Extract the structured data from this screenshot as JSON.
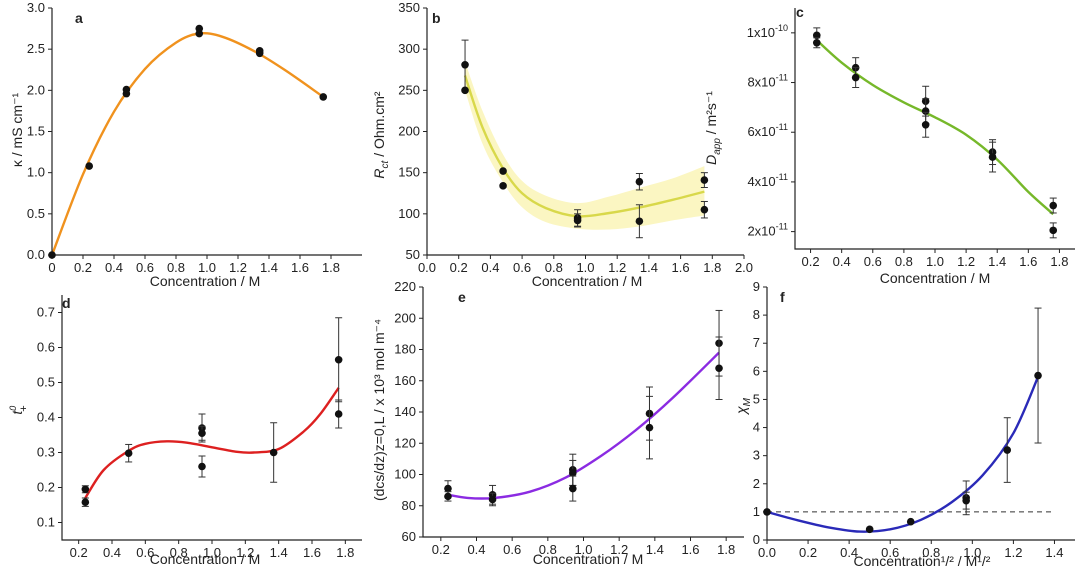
{
  "chart_data": [
    {
      "type": "scatter",
      "panel_label": "a",
      "xlabel": "Concentration / M",
      "ylabel": "κ / mS cm⁻¹",
      "xlim": [
        0,
        2.0
      ],
      "ylim": [
        0,
        3.0
      ],
      "x_ticks": [
        0,
        0.2,
        0.4,
        0.6,
        0.8,
        1.0,
        1.2,
        1.4,
        1.6,
        1.8
      ],
      "x_tick_labels": [
        "0",
        "0.2",
        "0.4",
        "0.6",
        "0.8",
        "1.0",
        "1.2",
        "1.4",
        "1.6",
        "1.8"
      ],
      "y_ticks": [
        0,
        0.5,
        1.0,
        1.5,
        2.0,
        2.5,
        3.0
      ],
      "y_tick_labels": [
        "0.0",
        "0.5",
        "1.0",
        "1.5",
        "2.0",
        "2.5",
        "3.0"
      ],
      "fit_color": "#f0921e",
      "points": [
        {
          "x": 0,
          "y": 0.0
        },
        {
          "x": 0.24,
          "y": 1.08
        },
        {
          "x": 0.48,
          "y": 1.96
        },
        {
          "x": 0.48,
          "y": 2.01
        },
        {
          "x": 0.95,
          "y": 2.69
        },
        {
          "x": 0.95,
          "y": 2.75
        },
        {
          "x": 1.34,
          "y": 2.45
        },
        {
          "x": 1.34,
          "y": 2.48
        },
        {
          "x": 1.75,
          "y": 1.92
        }
      ],
      "fit": {
        "x": [
          0,
          0.2,
          0.4,
          0.6,
          0.8,
          0.95,
          1.1,
          1.3,
          1.5,
          1.75
        ],
        "y": [
          0,
          0.98,
          1.74,
          2.26,
          2.58,
          2.69,
          2.65,
          2.48,
          2.25,
          1.92
        ]
      }
    },
    {
      "type": "scatter",
      "panel_label": "b",
      "xlabel": "Concentration / M",
      "ylabel": "Rct / Ohm.cm²",
      "ylabel_main": "R",
      "ylabel_sub": "ct",
      "ylabel_rest": " / Ohm.cm²",
      "xlim": [
        0,
        2.0
      ],
      "ylim": [
        50,
        350
      ],
      "x_ticks": [
        0,
        0.2,
        0.4,
        0.6,
        0.8,
        1.0,
        1.2,
        1.4,
        1.6,
        1.8,
        2.0
      ],
      "x_tick_labels": [
        "0.0",
        "0.2",
        "0.4",
        "0.6",
        "0.8",
        "1.0",
        "1.2",
        "1.4",
        "1.6",
        "1.8",
        "2.0"
      ],
      "y_ticks": [
        50,
        100,
        150,
        200,
        250,
        300,
        350
      ],
      "y_tick_labels": [
        "50",
        "100",
        "150",
        "200",
        "250",
        "300",
        "350"
      ],
      "fit_color": "#d8d84a",
      "band_color": "#fbf6c2",
      "points": [
        {
          "x": 0.24,
          "y": 281,
          "err": 30
        },
        {
          "x": 0.24,
          "y": 250,
          "err": 0
        },
        {
          "x": 0.48,
          "y": 152,
          "err": 0
        },
        {
          "x": 0.48,
          "y": 134,
          "err": 0
        },
        {
          "x": 0.95,
          "y": 95,
          "err": 10
        },
        {
          "x": 0.95,
          "y": 92,
          "err": 8
        },
        {
          "x": 1.34,
          "y": 139,
          "err": 10
        },
        {
          "x": 1.34,
          "y": 91,
          "err": 20
        },
        {
          "x": 1.75,
          "y": 141,
          "err": 9
        },
        {
          "x": 1.75,
          "y": 105,
          "err": 10
        }
      ],
      "fit": {
        "x": [
          0.24,
          0.35,
          0.48,
          0.6,
          0.75,
          0.95,
          1.15,
          1.35,
          1.55,
          1.75
        ],
        "y": [
          268,
          205,
          155,
          125,
          107,
          97,
          101,
          108,
          117,
          127
        ]
      },
      "band_upper": [
        285,
        225,
        172,
        140,
        122,
        113,
        121,
        132,
        143,
        158
      ],
      "band_lower": [
        250,
        185,
        138,
        108,
        90,
        82,
        81,
        85,
        92,
        98
      ]
    },
    {
      "type": "scatter",
      "panel_label": "c",
      "xlabel": "Concentration / M",
      "ylabel": "Dapp / m²s⁻¹",
      "ylabel_main": "D",
      "ylabel_sub": "app",
      "ylabel_rest": " / m²s⁻¹",
      "xlim": [
        0.1,
        1.9
      ],
      "ylim": [
        1.3e-11,
        1.1e-10
      ],
      "x_ticks": [
        0.2,
        0.4,
        0.6,
        0.8,
        1.0,
        1.2,
        1.4,
        1.6,
        1.8
      ],
      "x_tick_labels": [
        "0.2",
        "0.4",
        "0.6",
        "0.8",
        "1.0",
        "1.2",
        "1.4",
        "1.6",
        "1.8"
      ],
      "y_ticks": [
        2e-11,
        4e-11,
        6e-11,
        8e-11,
        1e-10
      ],
      "y_tick_base": [
        "2x10",
        "4x10",
        "6x10",
        "8x10",
        "1x10"
      ],
      "y_tick_exp": [
        "-11",
        "-11",
        "-11",
        "-11",
        "-10"
      ],
      "fit_color": "#76b82a",
      "points": [
        {
          "x": 0.24,
          "y": 9.9e-11,
          "err": 3e-12
        },
        {
          "x": 0.24,
          "y": 9.6e-11,
          "err": 2e-12
        },
        {
          "x": 0.49,
          "y": 8.6e-11,
          "err": 4e-12
        },
        {
          "x": 0.49,
          "y": 8.2e-11,
          "err": 4e-12
        },
        {
          "x": 0.94,
          "y": 7.25e-11,
          "err": 6e-12
        },
        {
          "x": 0.94,
          "y": 6.85e-11,
          "err": 5e-12
        },
        {
          "x": 0.94,
          "y": 6.3e-11,
          "err": 5e-12
        },
        {
          "x": 1.37,
          "y": 5.2e-11,
          "err": 5e-12
        },
        {
          "x": 1.37,
          "y": 5e-11,
          "err": 6e-12
        },
        {
          "x": 1.76,
          "y": 3.05e-11,
          "err": 3e-12
        },
        {
          "x": 1.76,
          "y": 2.05e-11,
          "err": 3e-12
        }
      ],
      "fit": {
        "x": [
          0.24,
          0.4,
          0.6,
          0.8,
          1.0,
          1.2,
          1.4,
          1.6,
          1.76
        ],
        "y": [
          9.7e-11,
          8.8e-11,
          7.9e-11,
          7.2e-11,
          6.6e-11,
          5.9e-11,
          4.9e-11,
          3.6e-11,
          2.7e-11
        ]
      }
    },
    {
      "type": "scatter",
      "panel_label": "d",
      "xlabel": "Concentration / M",
      "ylabel": "t⁰₊",
      "ylabel_main": "t",
      "ylabel_sup": "0",
      "ylabel_sub": "+",
      "xlim": [
        0.1,
        1.9
      ],
      "ylim": [
        0.05,
        0.75
      ],
      "x_ticks": [
        0.2,
        0.4,
        0.6,
        0.8,
        1.0,
        1.2,
        1.4,
        1.6,
        1.8
      ],
      "x_tick_labels": [
        "0.2",
        "0.4",
        "0.6",
        "0.8",
        "1.0",
        "1.2",
        "1.4",
        "1.6",
        "1.8"
      ],
      "y_ticks": [
        0.1,
        0.2,
        0.3,
        0.4,
        0.5,
        0.6,
        0.7
      ],
      "y_tick_labels": [
        "0.1",
        "0.2",
        "0.3",
        "0.4",
        "0.5",
        "0.6",
        "0.7"
      ],
      "fit_color": "#dd2020",
      "points": [
        {
          "x": 0.24,
          "y": 0.195,
          "err": 0.01
        },
        {
          "x": 0.24,
          "y": 0.158,
          "err": 0.012
        },
        {
          "x": 0.5,
          "y": 0.298,
          "err": 0.025
        },
        {
          "x": 0.94,
          "y": 0.37,
          "err": 0.04
        },
        {
          "x": 0.94,
          "y": 0.355,
          "err": 0.02
        },
        {
          "x": 0.94,
          "y": 0.26,
          "err": 0.03
        },
        {
          "x": 1.37,
          "y": 0.3,
          "err": 0.085
        },
        {
          "x": 1.76,
          "y": 0.565,
          "err": 0.12
        },
        {
          "x": 1.76,
          "y": 0.41,
          "err": 0.04
        }
      ],
      "fit": {
        "x": [
          0.24,
          0.35,
          0.5,
          0.6,
          0.73,
          0.85,
          1.0,
          1.15,
          1.25,
          1.4,
          1.55,
          1.65,
          1.76
        ],
        "y": [
          0.17,
          0.25,
          0.305,
          0.325,
          0.332,
          0.328,
          0.315,
          0.302,
          0.3,
          0.31,
          0.36,
          0.41,
          0.485
        ]
      }
    },
    {
      "type": "scatter",
      "panel_label": "e",
      "xlabel": "Concentration / M",
      "ylabel": "(dcs/dz)z=0,L / x 10³ mol m⁻⁴",
      "xlim": [
        0.1,
        1.9
      ],
      "ylim": [
        60,
        220
      ],
      "x_ticks": [
        0.2,
        0.4,
        0.6,
        0.8,
        1.0,
        1.2,
        1.4,
        1.6,
        1.8
      ],
      "x_tick_labels": [
        "0.2",
        "0.4",
        "0.6",
        "0.8",
        "1.0",
        "1.2",
        "1.4",
        "1.6",
        "1.8"
      ],
      "y_ticks": [
        60,
        80,
        100,
        120,
        140,
        160,
        180,
        200,
        220
      ],
      "y_tick_labels": [
        "60",
        "80",
        "100",
        "120",
        "140",
        "160",
        "180",
        "200",
        "220"
      ],
      "fit_color": "#8b2be2",
      "points": [
        {
          "x": 0.24,
          "y": 91,
          "err": 5
        },
        {
          "x": 0.24,
          "y": 86,
          "err": 3
        },
        {
          "x": 0.49,
          "y": 87,
          "err": 6
        },
        {
          "x": 0.49,
          "y": 84,
          "err": 4
        },
        {
          "x": 0.94,
          "y": 103,
          "err": 10
        },
        {
          "x": 0.94,
          "y": 101,
          "err": 8
        },
        {
          "x": 0.94,
          "y": 91,
          "err": 8
        },
        {
          "x": 1.37,
          "y": 139,
          "err": 17
        },
        {
          "x": 1.37,
          "y": 130,
          "err": 20
        },
        {
          "x": 1.76,
          "y": 184,
          "err": 21
        },
        {
          "x": 1.76,
          "y": 168,
          "err": 20
        }
      ],
      "fit": {
        "x": [
          0.24,
          0.35,
          0.5,
          0.7,
          0.9,
          1.1,
          1.3,
          1.5,
          1.76
        ],
        "y": [
          87,
          85,
          85,
          89,
          98,
          112,
          129,
          149,
          178
        ]
      }
    },
    {
      "type": "scatter",
      "panel_label": "f",
      "xlabel": "Concentration¹/² / M¹/²",
      "ylabel": "χM",
      "ylabel_main": "χ",
      "ylabel_sub": "M",
      "xlim": [
        0,
        1.5
      ],
      "ylim": [
        0,
        9
      ],
      "x_ticks": [
        0,
        0.2,
        0.4,
        0.6,
        0.8,
        1.0,
        1.2,
        1.4
      ],
      "x_tick_labels": [
        "0.0",
        "0.2",
        "0.4",
        "0.6",
        "0.8",
        "1.0",
        "1.2",
        "1.4"
      ],
      "y_ticks": [
        0,
        1,
        2,
        3,
        4,
        5,
        6,
        7,
        8,
        9
      ],
      "y_tick_labels": [
        "0",
        "1",
        "2",
        "3",
        "4",
        "5",
        "6",
        "7",
        "8",
        "9"
      ],
      "fit_color": "#2a2ab8",
      "reference_line_y": 1,
      "points": [
        {
          "x": 0.0,
          "y": 1.0,
          "err": 0
        },
        {
          "x": 0.5,
          "y": 0.38,
          "err": 0
        },
        {
          "x": 0.7,
          "y": 0.65,
          "err": 0
        },
        {
          "x": 0.97,
          "y": 1.5,
          "err": 0.6
        },
        {
          "x": 0.97,
          "y": 1.4,
          "err": 0.3
        },
        {
          "x": 1.17,
          "y": 3.2,
          "err": 1.15
        },
        {
          "x": 1.32,
          "y": 5.85,
          "err": 2.4
        }
      ],
      "fit": {
        "x": [
          0,
          0.15,
          0.3,
          0.45,
          0.6,
          0.75,
          0.9,
          1.05,
          1.2,
          1.32
        ],
        "y": [
          1.0,
          0.7,
          0.45,
          0.3,
          0.38,
          0.72,
          1.35,
          2.3,
          3.8,
          5.8
        ]
      }
    }
  ]
}
